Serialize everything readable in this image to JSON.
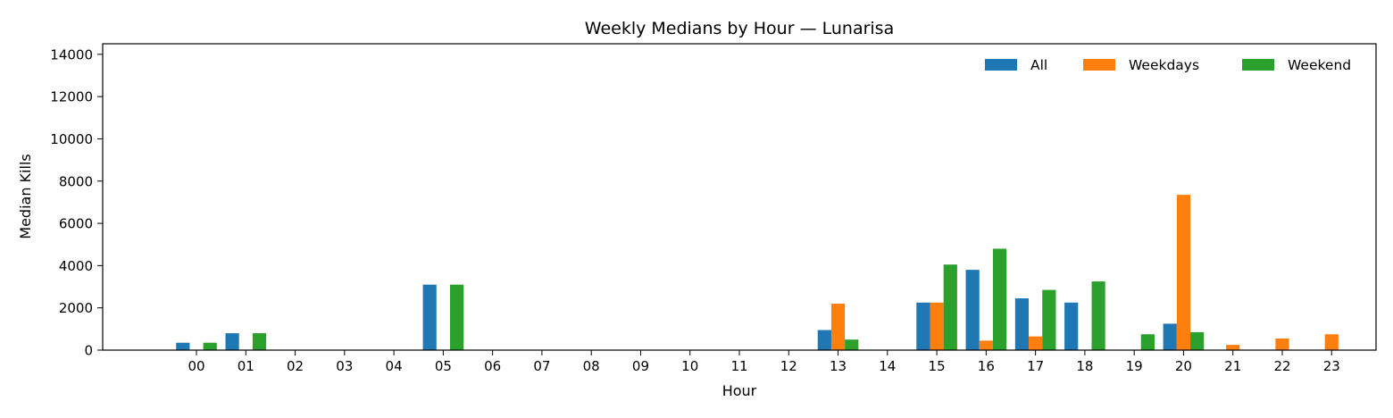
{
  "chart_data": {
    "type": "bar",
    "title": "Weekly Medians by Hour — Lunarisa",
    "xlabel": "Hour",
    "ylabel": "Median Kills",
    "ylim": [
      0,
      14500
    ],
    "yticks": [
      0,
      2000,
      4000,
      6000,
      8000,
      10000,
      12000,
      14000
    ],
    "grid": false,
    "legend_position": "top-right",
    "categories": [
      "00",
      "01",
      "02",
      "03",
      "04",
      "05",
      "06",
      "07",
      "08",
      "09",
      "10",
      "11",
      "12",
      "13",
      "14",
      "15",
      "16",
      "17",
      "18",
      "19",
      "20",
      "21",
      "22",
      "23"
    ],
    "series": [
      {
        "name": "All",
        "color": "#1f77b4",
        "values": [
          350,
          800,
          0,
          0,
          0,
          3100,
          0,
          0,
          0,
          0,
          0,
          0,
          0,
          950,
          0,
          2250,
          3800,
          2450,
          2250,
          0,
          1250,
          0,
          0,
          0
        ]
      },
      {
        "name": "Weekdays",
        "color": "#ff7f0e",
        "values": [
          0,
          0,
          0,
          0,
          0,
          0,
          0,
          0,
          0,
          0,
          0,
          0,
          0,
          2200,
          0,
          2250,
          450,
          650,
          0,
          0,
          7350,
          250,
          550,
          750
        ]
      },
      {
        "name": "Weekend",
        "color": "#2ca02c",
        "values": [
          350,
          800,
          0,
          0,
          0,
          3100,
          0,
          0,
          0,
          0,
          0,
          0,
          0,
          500,
          0,
          4050,
          4800,
          2850,
          3250,
          750,
          850,
          0,
          0,
          0
        ]
      }
    ]
  }
}
